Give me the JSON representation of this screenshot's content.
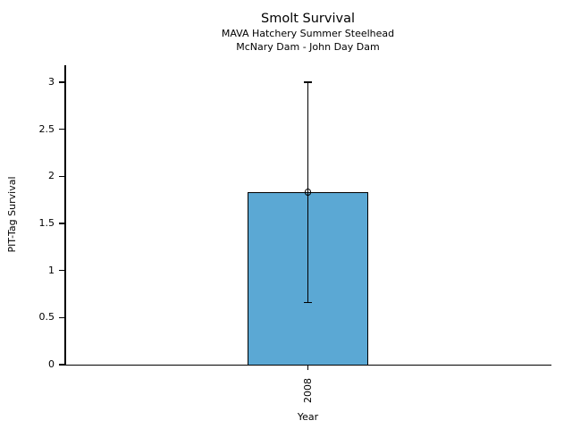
{
  "chart_data": {
    "type": "bar",
    "title": "Smolt Survival",
    "subtitle1": "MAVA Hatchery Summer Steelhead",
    "subtitle2": "McNary Dam - John Day Dam",
    "xlabel": "Year",
    "ylabel": "PIT-Tag Survival",
    "categories": [
      "2008"
    ],
    "values": [
      1.83
    ],
    "error_low": [
      0.66
    ],
    "error_high": [
      3.0
    ],
    "ylim": [
      0,
      3
    ],
    "yticks": [
      0,
      0.5,
      1,
      1.5,
      2,
      2.5,
      3
    ],
    "grid": false,
    "legend": "none",
    "marker": "open-circle",
    "colors": {
      "bar_fill": "#5BA8D4",
      "bar_edge": "#000000",
      "error_bar": "#000000",
      "text": "#000000",
      "background": "#FFFFFF"
    }
  }
}
